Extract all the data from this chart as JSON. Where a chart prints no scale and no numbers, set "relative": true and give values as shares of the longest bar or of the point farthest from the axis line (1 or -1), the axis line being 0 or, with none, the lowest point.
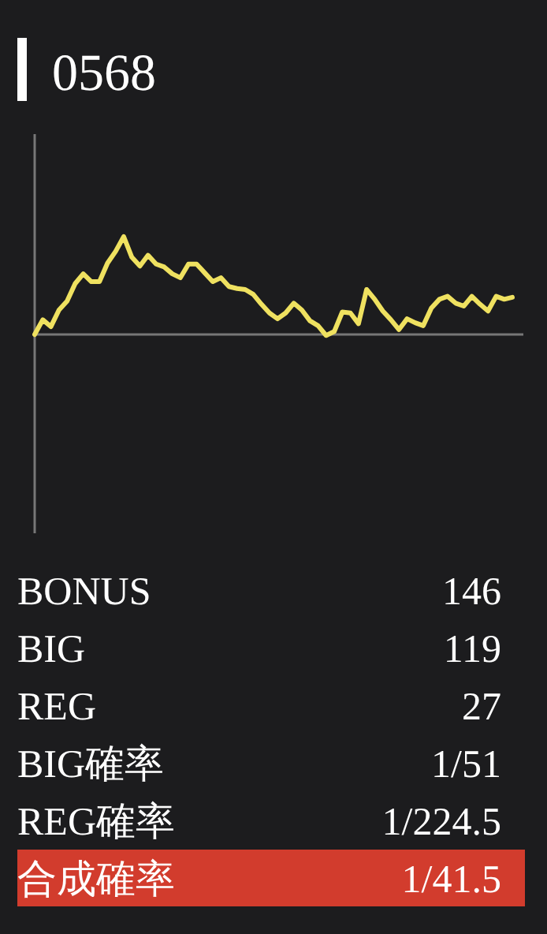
{
  "chart_data": [
    {
      "type": "line",
      "title": "0568",
      "relative": true,
      "color": "#efe160",
      "categories": [
        null,
        null,
        null,
        null,
        null,
        null,
        null,
        null,
        null,
        null,
        null,
        null,
        null,
        null,
        null,
        null,
        null,
        null,
        null,
        null,
        null,
        null,
        null,
        null,
        null,
        null,
        null,
        null,
        null,
        null,
        null,
        null,
        null,
        null,
        null,
        null,
        null,
        null,
        null,
        null,
        null,
        null,
        null,
        null,
        null,
        null,
        null,
        null,
        null,
        null,
        null,
        null,
        null,
        null,
        null,
        null,
        null,
        null,
        null,
        null
      ],
      "values": [
        0,
        0.15,
        0.08,
        0.25,
        0.34,
        0.52,
        0.62,
        0.54,
        0.54,
        0.73,
        0.85,
        1,
        0.79,
        0.7,
        0.81,
        0.72,
        0.69,
        0.62,
        0.58,
        0.72,
        0.72,
        0.63,
        0.54,
        0.58,
        0.49,
        0.47,
        0.46,
        0.41,
        0.31,
        0.22,
        0.16,
        0.22,
        0.32,
        0.25,
        0.14,
        0.09,
        -0.01,
        0.03,
        0.23,
        0.22,
        0.11,
        0.46,
        0.36,
        0.24,
        0.15,
        0.05,
        0.16,
        0.12,
        0.09,
        0.27,
        0.36,
        0.39,
        0.32,
        0.29,
        0.39,
        0.31,
        0.24,
        0.39,
        0.36,
        0.38
      ]
    },
    {
      "type": "other",
      "categories": [
        "BONUS",
        "BIG",
        "REG",
        "BIG確率",
        "REG確率",
        "合成確率"
      ],
      "value_labels": [
        "146",
        "119",
        "27",
        "1/51",
        "1/224.5",
        "1/41.5"
      ],
      "colors": [
        null,
        null,
        null,
        null,
        null,
        "#d23c2d"
      ]
    }
  ]
}
